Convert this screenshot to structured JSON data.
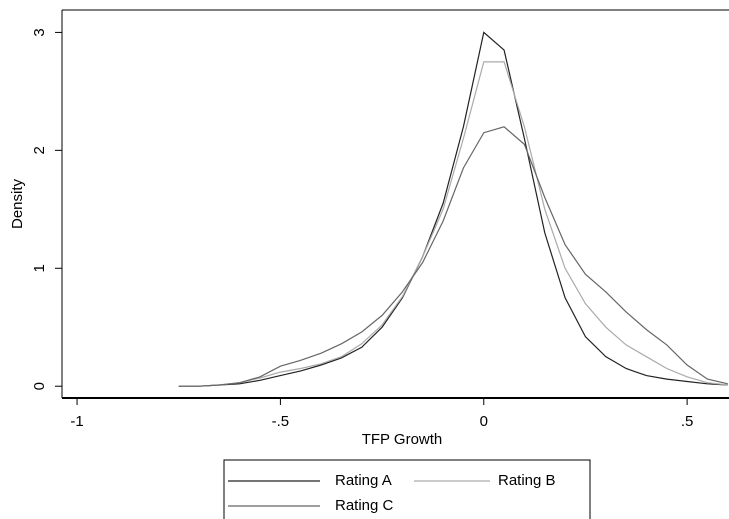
{
  "chart_data": {
    "type": "line",
    "x_label": "TFP Growth",
    "y_label": "Density",
    "x": [
      -0.75,
      -0.7,
      -0.65,
      -0.6,
      -0.55,
      -0.5,
      -0.45,
      -0.4,
      -0.35,
      -0.3,
      -0.25,
      -0.2,
      -0.15,
      -0.1,
      -0.05,
      0,
      0.05,
      0.1,
      0.15,
      0.2,
      0.25,
      0.3,
      0.35,
      0.4,
      0.45,
      0.5,
      0.55,
      0.6
    ],
    "series": [
      {
        "name": "Rating A",
        "color": "#222222",
        "values": [
          0,
          0,
          0.01,
          0.02,
          0.05,
          0.09,
          0.13,
          0.18,
          0.24,
          0.33,
          0.5,
          0.75,
          1.1,
          1.55,
          2.2,
          3.0,
          2.85,
          2.1,
          1.3,
          0.75,
          0.42,
          0.25,
          0.15,
          0.09,
          0.06,
          0.04,
          0.02,
          0.01
        ]
      },
      {
        "name": "Rating B",
        "color": "#aaaaaa",
        "values": [
          0,
          0,
          0.01,
          0.03,
          0.07,
          0.12,
          0.15,
          0.19,
          0.25,
          0.36,
          0.52,
          0.76,
          1.1,
          1.5,
          2.1,
          2.75,
          2.75,
          2.2,
          1.5,
          1.0,
          0.7,
          0.5,
          0.35,
          0.25,
          0.15,
          0.08,
          0.03,
          0.01
        ]
      },
      {
        "name": "Rating C",
        "color": "#666666",
        "values": [
          0,
          0,
          0.01,
          0.03,
          0.08,
          0.17,
          0.22,
          0.28,
          0.36,
          0.46,
          0.6,
          0.8,
          1.05,
          1.4,
          1.85,
          2.15,
          2.2,
          2.05,
          1.6,
          1.2,
          0.95,
          0.8,
          0.63,
          0.48,
          0.35,
          0.18,
          0.06,
          0.02
        ]
      }
    ],
    "xlim": [
      -1.037,
      0.603
    ],
    "ylim": [
      -0.1,
      3.19
    ],
    "xticks": [
      -1,
      {
        "value": -0.5,
        "label": "-.5"
      },
      0,
      {
        "value": 0.5,
        "label": ".5"
      }
    ],
    "yticks": [
      0,
      1,
      2,
      3
    ]
  }
}
